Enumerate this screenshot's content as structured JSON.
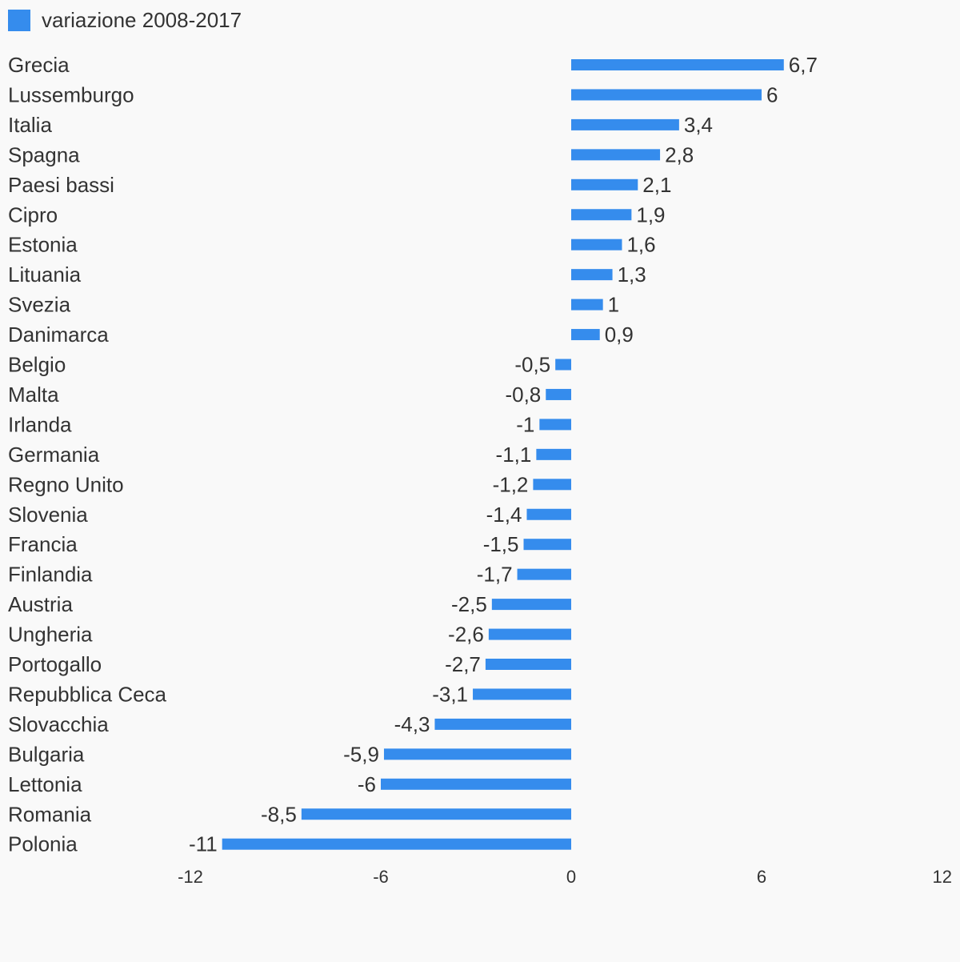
{
  "chart_data": {
    "type": "bar",
    "orientation": "horizontal",
    "legend": {
      "placement": "top-left",
      "label": "variazione 2008-2017",
      "color": "#358ced"
    },
    "series": [
      {
        "name": "variazione 2008-2017",
        "color": "#358ced",
        "values": [
          6.7,
          6,
          3.4,
          2.8,
          2.1,
          1.9,
          1.6,
          1.3,
          1,
          0.9,
          -0.5,
          -0.8,
          -1,
          -1.1,
          -1.2,
          -1.4,
          -1.5,
          -1.7,
          -2.5,
          -2.6,
          -2.7,
          -3.1,
          -4.3,
          -5.9,
          -6,
          -8.5,
          -11
        ],
        "value_labels": [
          "6,7",
          "6",
          "3,4",
          "2,8",
          "2,1",
          "1,9",
          "1,6",
          "1,3",
          "1",
          "0,9",
          "-0,5",
          "-0,8",
          "-1",
          "-1,1",
          "-1,2",
          "-1,4",
          "-1,5",
          "-1,7",
          "-2,5",
          "-2,6",
          "-2,7",
          "-3,1",
          "-4,3",
          "-5,9",
          "-6",
          "-8,5",
          "-11"
        ]
      }
    ],
    "categories": [
      "Grecia",
      "Lussemburgo",
      "Italia",
      "Spagna",
      "Paesi bassi",
      "Cipro",
      "Estonia",
      "Lituania",
      "Svezia",
      "Danimarca",
      "Belgio",
      "Malta",
      "Irlanda",
      "Germania",
      "Regno Unito",
      "Slovenia",
      "Francia",
      "Finlandia",
      "Austria",
      "Ungheria",
      "Portogallo",
      "Repubblica Ceca",
      "Slovacchia",
      "Bulgaria",
      "Lettonia",
      "Romania",
      "Polonia"
    ],
    "xlim": [
      -12,
      12
    ],
    "xticks": [
      -12,
      -6,
      0,
      6,
      12
    ],
    "xtick_labels": [
      "-12",
      "-6",
      "0",
      "6",
      "12"
    ],
    "grid": false
  }
}
